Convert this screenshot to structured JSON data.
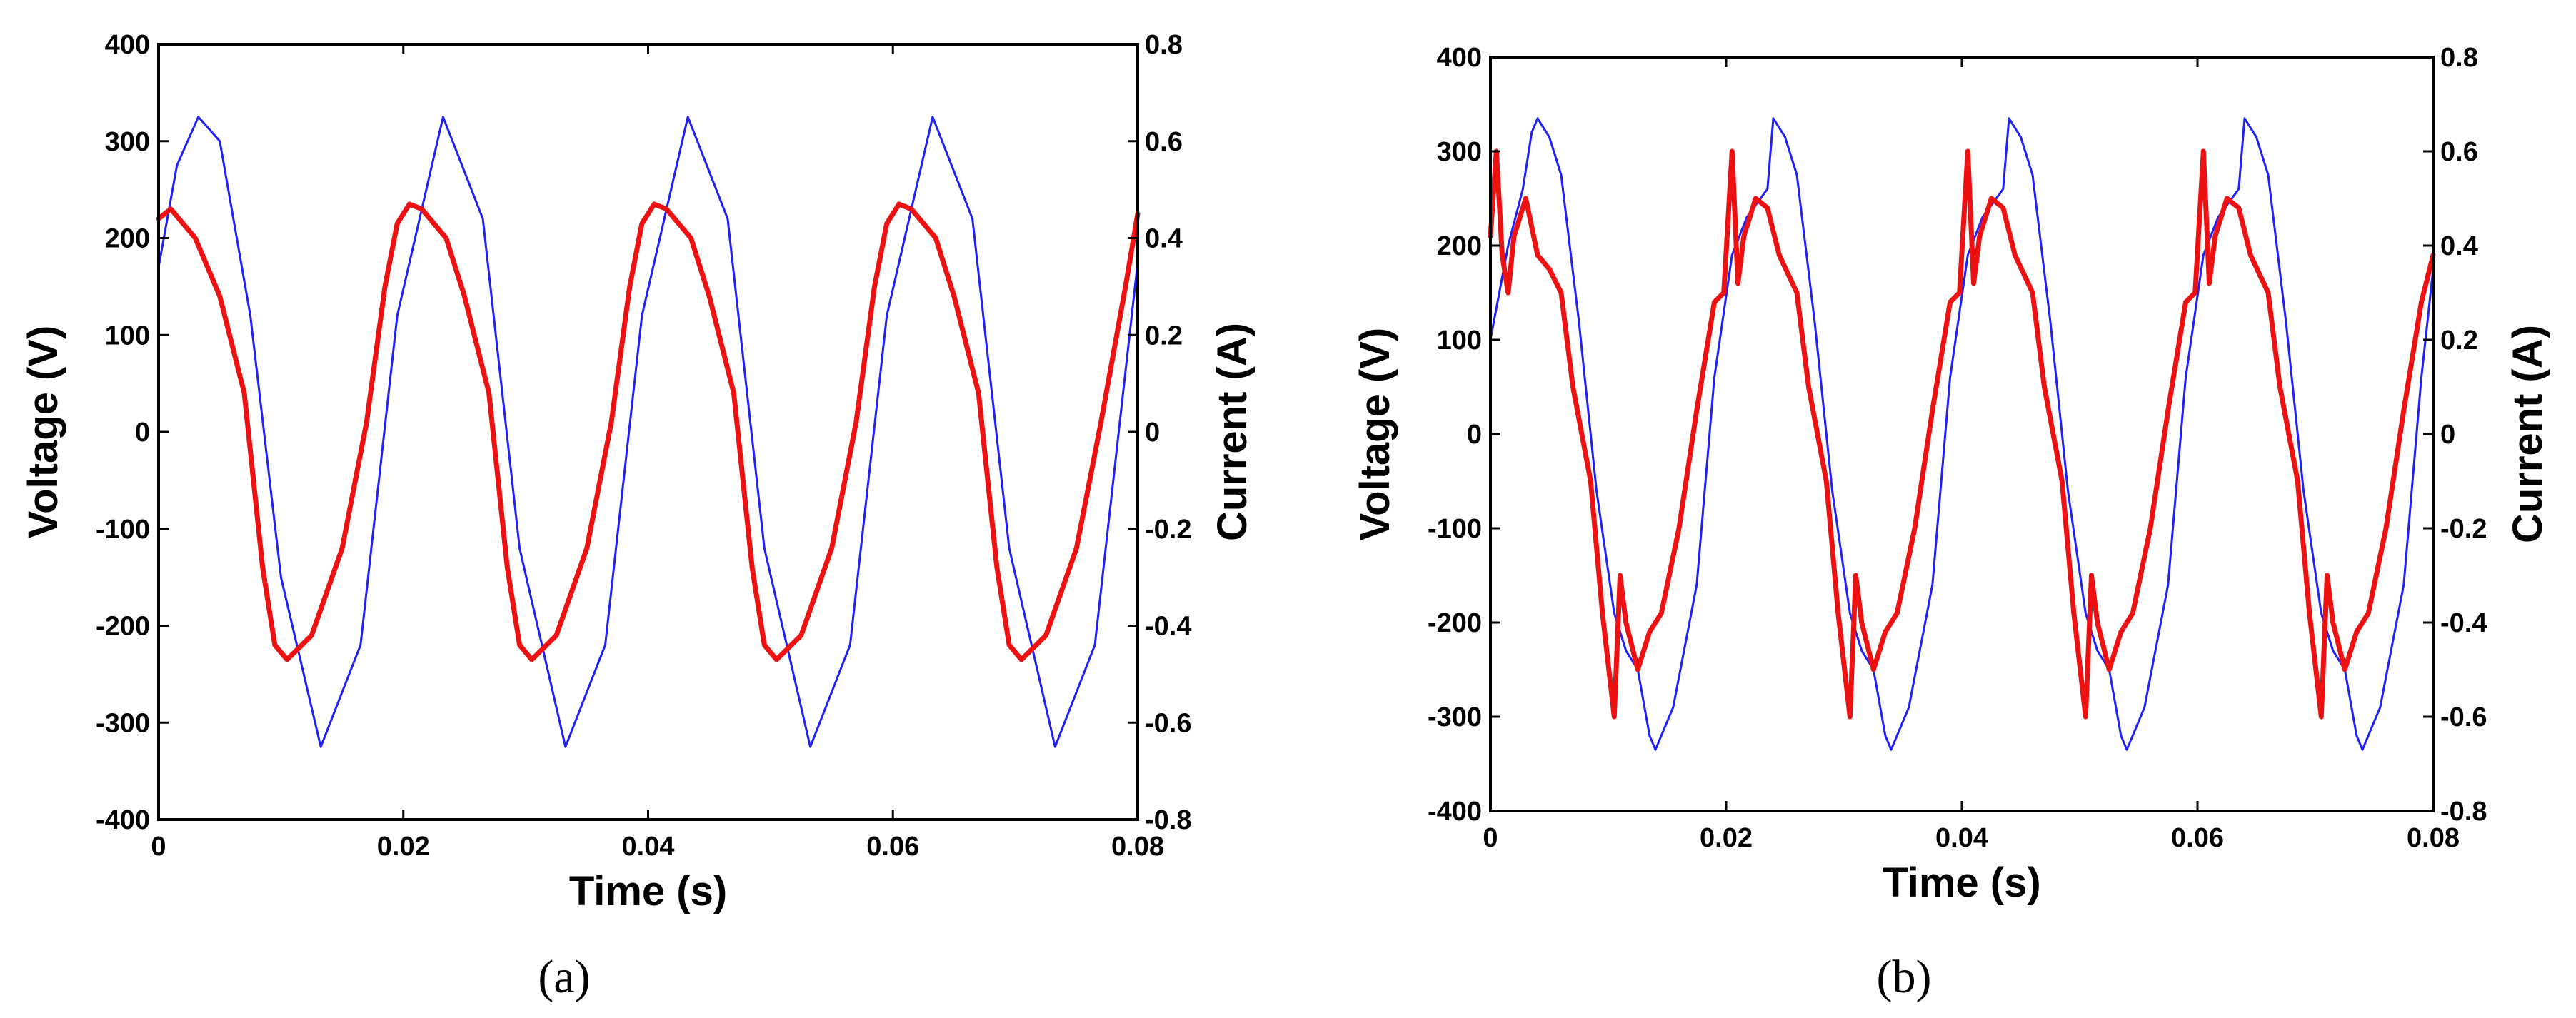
{
  "chart_data": [
    {
      "type": "line",
      "panel": "a",
      "caption": "(a)",
      "xlabel": "Time (s)",
      "ylabel": "Voltage (V)",
      "y2label": "Current (A)",
      "xlim": [
        0,
        0.08
      ],
      "ylim": [
        -400,
        400
      ],
      "y2lim": [
        -0.8,
        0.8
      ],
      "xticks": [
        0,
        0.02,
        0.04,
        0.06,
        0.08
      ],
      "xtick_labels": [
        "0",
        "0.02",
        "0.04",
        "0.06",
        "0.08"
      ],
      "yticks": [
        -400,
        -300,
        -200,
        -100,
        0,
        100,
        200,
        300,
        400
      ],
      "ytick_labels": [
        "-400",
        "-300",
        "-200",
        "-100",
        "0",
        "100",
        "200",
        "300",
        "400"
      ],
      "y2ticks": [
        -0.8,
        -0.6,
        -0.4,
        -0.2,
        0,
        0.2,
        0.4,
        0.6,
        0.8
      ],
      "y2tick_labels": [
        "-0.8",
        "-0.6",
        "-0.4",
        "-0.2",
        "0",
        "0.2",
        "0.4",
        "0.6",
        "0.8"
      ],
      "series": [
        {
          "name": "Voltage",
          "axis": "left",
          "color": "#1f1fff",
          "x": [
            0,
            0.0015,
            0.00325,
            0.005,
            0.0075,
            0.01,
            0.01325,
            0.0165,
            0.0195,
            0.02325,
            0.0265,
            0.0295,
            0.03325,
            0.0365,
            0.0395,
            0.04325,
            0.0465,
            0.0495,
            0.05325,
            0.0565,
            0.0595,
            0.06325,
            0.0665,
            0.0695,
            0.07325,
            0.0765,
            0.08
          ],
          "y": [
            170,
            275,
            325,
            300,
            120,
            -150,
            -325,
            -220,
            120,
            325,
            220,
            -120,
            -325,
            -220,
            120,
            325,
            220,
            -120,
            -325,
            -220,
            120,
            325,
            220,
            -120,
            -325,
            -220,
            175
          ]
        },
        {
          "name": "Current",
          "axis": "right",
          "color": "#ee1111",
          "x": [
            0,
            0.001,
            0.003,
            0.005,
            0.007,
            0.0085,
            0.0095,
            0.0105,
            0.0125,
            0.015,
            0.017,
            0.0185,
            0.0195,
            0.0205,
            0.0215,
            0.0235,
            0.025,
            0.027,
            0.0285,
            0.0295,
            0.0305,
            0.0325,
            0.035,
            0.037,
            0.0385,
            0.0395,
            0.0405,
            0.0415,
            0.0435,
            0.045,
            0.047,
            0.0485,
            0.0495,
            0.0505,
            0.0525,
            0.055,
            0.057,
            0.0585,
            0.0595,
            0.0605,
            0.0615,
            0.0635,
            0.065,
            0.067,
            0.0685,
            0.0695,
            0.0705,
            0.0725,
            0.075,
            0.077,
            0.079,
            0.08
          ],
          "y": [
            0.44,
            0.46,
            0.4,
            0.28,
            0.08,
            -0.28,
            -0.44,
            -0.47,
            -0.42,
            -0.24,
            0.02,
            0.3,
            0.43,
            0.47,
            0.46,
            0.4,
            0.28,
            0.08,
            -0.28,
            -0.44,
            -0.47,
            -0.42,
            -0.24,
            0.02,
            0.3,
            0.43,
            0.47,
            0.46,
            0.4,
            0.28,
            0.08,
            -0.28,
            -0.44,
            -0.47,
            -0.42,
            -0.24,
            0.02,
            0.3,
            0.43,
            0.47,
            0.46,
            0.4,
            0.28,
            0.08,
            -0.28,
            -0.44,
            -0.47,
            -0.42,
            -0.24,
            0.02,
            0.3,
            0.45
          ]
        }
      ]
    },
    {
      "type": "line",
      "panel": "b",
      "caption": "(b)",
      "xlabel": "Time (s)",
      "ylabel": "Voltage (V)",
      "y2label": "Current (A)",
      "xlim": [
        0,
        0.08
      ],
      "ylim": [
        -400,
        400
      ],
      "y2lim": [
        -0.8,
        0.8
      ],
      "xticks": [
        0,
        0.02,
        0.04,
        0.06,
        0.08
      ],
      "xtick_labels": [
        "0",
        "0.02",
        "0.04",
        "0.06",
        "0.08"
      ],
      "yticks": [
        -400,
        -300,
        -200,
        -100,
        0,
        100,
        200,
        300,
        400
      ],
      "ytick_labels": [
        "-400",
        "-300",
        "-200",
        "-100",
        "0",
        "100",
        "200",
        "300",
        "400"
      ],
      "y2ticks": [
        -0.8,
        -0.6,
        -0.4,
        -0.2,
        0,
        0.2,
        0.4,
        0.6,
        0.8
      ],
      "y2tick_labels": [
        "-0.8",
        "-0.6",
        "-0.4",
        "-0.2",
        "0",
        "0.2",
        "0.4",
        "0.6",
        "0.8"
      ],
      "series": [
        {
          "name": "Voltage",
          "axis": "left",
          "color": "#1f1fff",
          "x": [
            0,
            0.0015,
            0.00275,
            0.0035,
            0.004,
            0.005,
            0.006,
            0.0075,
            0.009,
            0.0105,
            0.0115,
            0.0125,
            0.0135,
            0.014,
            0.0155,
            0.0175,
            0.019,
            0.0205,
            0.02175,
            0.0235,
            0.024,
            0.025,
            0.026,
            0.0275,
            0.029,
            0.0305,
            0.0315,
            0.0325,
            0.0335,
            0.034,
            0.0355,
            0.0375,
            0.039,
            0.0405,
            0.04175,
            0.0435,
            0.044,
            0.045,
            0.046,
            0.0475,
            0.049,
            0.0505,
            0.0515,
            0.0525,
            0.0535,
            0.054,
            0.0555,
            0.0575,
            0.059,
            0.0605,
            0.06175,
            0.0635,
            0.064,
            0.065,
            0.066,
            0.0675,
            0.069,
            0.0705,
            0.0715,
            0.0725,
            0.0735,
            0.074,
            0.0755,
            0.0775,
            0.079,
            0.08
          ],
          "y": [
            100,
            200,
            260,
            320,
            335,
            315,
            275,
            120,
            -60,
            -190,
            -230,
            -250,
            -320,
            -335,
            -290,
            -160,
            60,
            190,
            230,
            260,
            335,
            315,
            275,
            120,
            -60,
            -190,
            -230,
            -250,
            -320,
            -335,
            -290,
            -160,
            60,
            190,
            230,
            260,
            335,
            315,
            275,
            120,
            -60,
            -190,
            -230,
            -250,
            -320,
            -335,
            -290,
            -160,
            60,
            190,
            230,
            260,
            335,
            315,
            275,
            120,
            -60,
            -190,
            -230,
            -250,
            -320,
            -335,
            -290,
            -160,
            60,
            175
          ]
        },
        {
          "name": "Current",
          "axis": "right",
          "color": "#ee1111",
          "x": [
            0,
            0.0005,
            0.001,
            0.0015,
            0.002,
            0.003,
            0.004,
            0.005,
            0.006,
            0.007,
            0.0085,
            0.0095,
            0.0105,
            0.011,
            0.0115,
            0.0125,
            0.0135,
            0.0145,
            0.016,
            0.0175,
            0.019,
            0.0198,
            0.0205,
            0.021,
            0.0215,
            0.0225,
            0.0235,
            0.0245,
            0.026,
            0.027,
            0.0285,
            0.0295,
            0.0305,
            0.031,
            0.0315,
            0.0325,
            0.0335,
            0.0345,
            0.036,
            0.0375,
            0.039,
            0.0398,
            0.0405,
            0.041,
            0.0415,
            0.0425,
            0.0435,
            0.0445,
            0.046,
            0.047,
            0.0485,
            0.0495,
            0.0505,
            0.051,
            0.0515,
            0.0525,
            0.0535,
            0.0545,
            0.056,
            0.0575,
            0.059,
            0.0598,
            0.0605,
            0.061,
            0.0615,
            0.0625,
            0.0635,
            0.0645,
            0.066,
            0.067,
            0.0685,
            0.0695,
            0.0705,
            0.071,
            0.0715,
            0.0725,
            0.0735,
            0.0745,
            0.076,
            0.0775,
            0.079,
            0.08
          ],
          "y": [
            0.42,
            0.6,
            0.38,
            0.3,
            0.42,
            0.5,
            0.38,
            0.35,
            0.3,
            0.1,
            -0.1,
            -0.38,
            -0.6,
            -0.3,
            -0.4,
            -0.5,
            -0.42,
            -0.38,
            -0.2,
            0.05,
            0.28,
            0.3,
            0.6,
            0.32,
            0.42,
            0.5,
            0.48,
            0.38,
            0.3,
            0.1,
            -0.1,
            -0.38,
            -0.6,
            -0.3,
            -0.4,
            -0.5,
            -0.42,
            -0.38,
            -0.2,
            0.05,
            0.28,
            0.3,
            0.6,
            0.32,
            0.42,
            0.5,
            0.48,
            0.38,
            0.3,
            0.1,
            -0.1,
            -0.38,
            -0.6,
            -0.3,
            -0.4,
            -0.5,
            -0.42,
            -0.38,
            -0.2,
            0.05,
            0.28,
            0.3,
            0.6,
            0.32,
            0.42,
            0.5,
            0.48,
            0.38,
            0.3,
            0.1,
            -0.1,
            -0.38,
            -0.6,
            -0.3,
            -0.4,
            -0.5,
            -0.42,
            -0.38,
            -0.2,
            0.05,
            0.28,
            0.38
          ]
        }
      ]
    }
  ]
}
